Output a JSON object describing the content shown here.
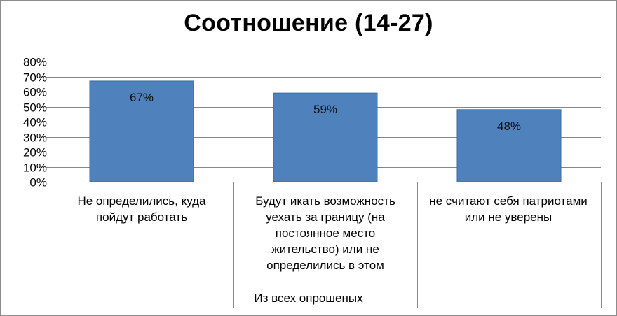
{
  "chart_data": {
    "type": "bar",
    "title": "Соотношение (14-27)",
    "xlabel": "Из всех опрошеных",
    "ylabel": "",
    "ylim": [
      0,
      80
    ],
    "yticks": [
      "0%",
      "10%",
      "20%",
      "30%",
      "40%",
      "50%",
      "60%",
      "70%",
      "80%"
    ],
    "grid": true,
    "legend": "none",
    "categories": [
      "Не определились, куда пойдут работать",
      "Будут икать возможность уехать за границу  (на постоянное место жительство) или не определились в этом",
      "не считают себя патриотами или не уверены"
    ],
    "values": [
      67,
      59,
      48
    ],
    "data_labels": [
      "67%",
      "59%",
      "48%"
    ],
    "colors": {
      "bar": "#4f81bd",
      "bar_edge": "#3b6aa0",
      "grid": "#868686",
      "axis": "#868686"
    }
  }
}
